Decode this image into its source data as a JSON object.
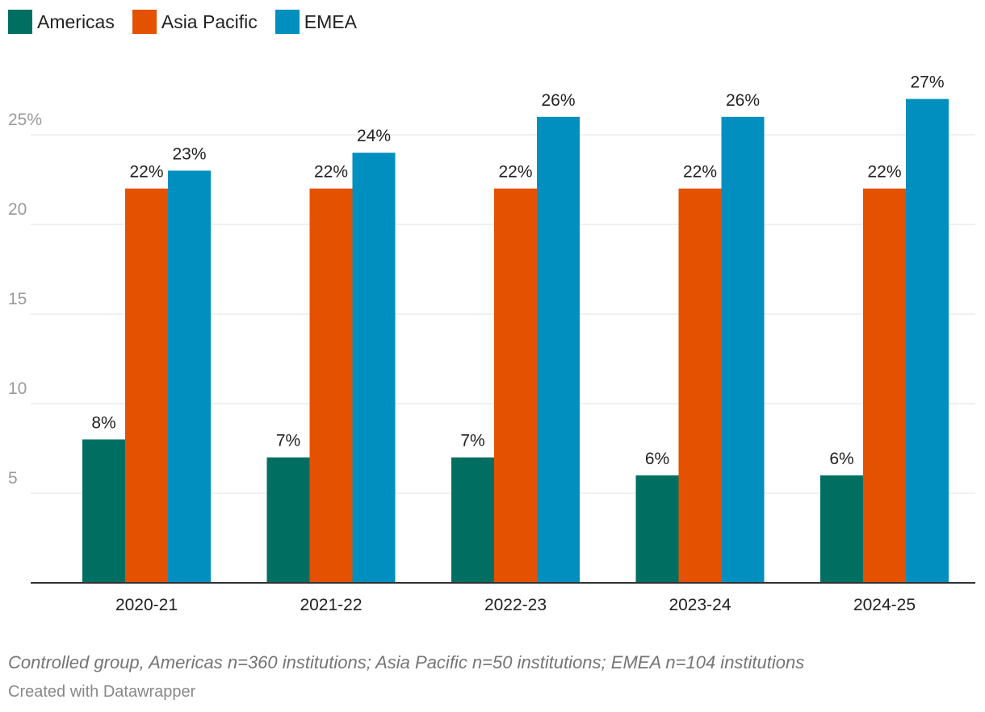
{
  "chart_data": {
    "type": "bar",
    "categories": [
      "2020-21",
      "2021-22",
      "2022-23",
      "2023-24",
      "2024-25"
    ],
    "series": [
      {
        "name": "Americas",
        "color": "#006f62",
        "values": [
          8,
          7,
          7,
          6,
          6
        ],
        "labels": [
          "8%",
          "7%",
          "7%",
          "6%",
          "6%"
        ]
      },
      {
        "name": "Asia Pacific",
        "color": "#e45100",
        "values": [
          22,
          22,
          22,
          22,
          22
        ],
        "labels": [
          "22%",
          "22%",
          "22%",
          "22%",
          "22%"
        ]
      },
      {
        "name": "EMEA",
        "color": "#008fbe",
        "values": [
          23,
          24,
          26,
          26,
          27
        ],
        "labels": [
          "23%",
          "24%",
          "26%",
          "26%",
          "27%"
        ]
      }
    ],
    "yticks": [
      5,
      10,
      15,
      20,
      25
    ],
    "ytick_labels": [
      "5",
      "10",
      "15",
      "20",
      "25%"
    ],
    "ylim": [
      0,
      27
    ],
    "grid": true,
    "legend_position": "top-left"
  },
  "footer": {
    "note": "Controlled group, Americas n=360 institutions; Asia Pacific n=50 institutions; EMEA n=104 institutions",
    "credit": "Created with Datawrapper"
  }
}
